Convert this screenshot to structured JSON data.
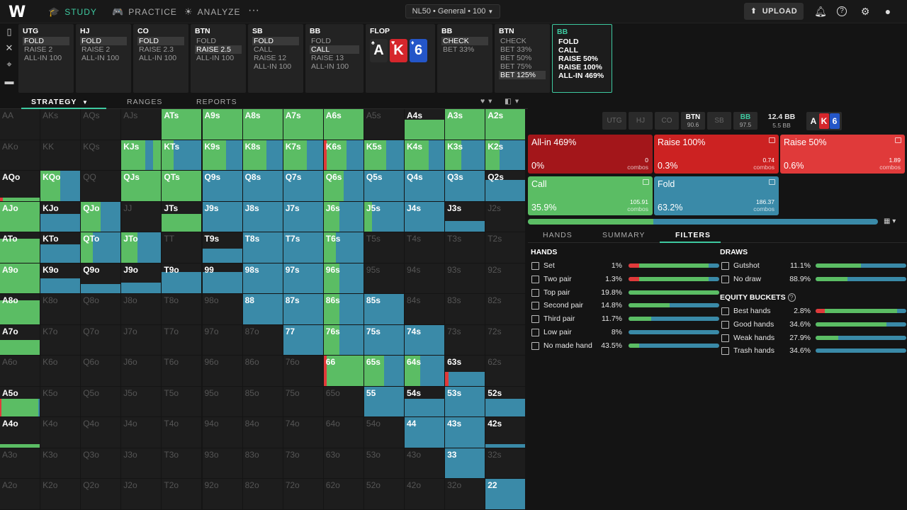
{
  "topbar": {
    "logo": "W",
    "nav": [
      {
        "label": "STUDY",
        "icon": "graduation-cap-icon"
      },
      {
        "label": "PRACTICE",
        "icon": "gamepad-icon"
      },
      {
        "label": "ANALYZE",
        "icon": "lightbulb-icon"
      }
    ],
    "more": "···",
    "game_selector": "NL50 • General • 100",
    "upload_label": "UPLOAD"
  },
  "action_cards": [
    {
      "pos": "UTG",
      "opts": [
        "FOLD",
        "RAISE 2",
        "ALL-IN 100"
      ],
      "sel": 0
    },
    {
      "pos": "HJ",
      "opts": [
        "FOLD",
        "RAISE 2",
        "ALL-IN 100"
      ],
      "sel": 0
    },
    {
      "pos": "CO",
      "opts": [
        "FOLD",
        "RAISE 2.3",
        "ALL-IN 100"
      ],
      "sel": 0
    },
    {
      "pos": "BTN",
      "opts": [
        "FOLD",
        "RAISE 2.5",
        "ALL-IN 100"
      ],
      "sel": 1
    },
    {
      "pos": "SB",
      "opts": [
        "FOLD",
        "CALL",
        "RAISE 12",
        "ALL-IN 100"
      ],
      "sel": 0
    },
    {
      "pos": "BB",
      "opts": [
        "FOLD",
        "CALL",
        "RAISE 13",
        "ALL-IN 100"
      ],
      "sel": 1
    },
    {
      "pos": "FLOP",
      "cards": [
        {
          "r": "A",
          "c": "#2b2b2b",
          "s": "♠"
        },
        {
          "r": "K",
          "c": "#d6262c",
          "s": "♥"
        },
        {
          "r": "6",
          "c": "#2456c8",
          "s": "♦"
        }
      ]
    },
    {
      "pos": "BB",
      "opts": [
        "CHECK",
        "BET 33%"
      ],
      "sel": 0
    },
    {
      "pos": "BTN",
      "opts": [
        "CHECK",
        "BET 33%",
        "BET 50%",
        "BET 75%",
        "BET 125%"
      ],
      "sel": 4
    },
    {
      "pos": "BB",
      "opts": [
        "FOLD",
        "CALL",
        "RAISE 50%",
        "RAISE 100%",
        "ALL-IN 469%"
      ],
      "sel": -1
    }
  ],
  "tabs": {
    "strategy": "STRATEGY",
    "ranges": "RANGES",
    "reports": "REPORTS"
  },
  "colors": {
    "green": "#5bbd64",
    "blue": "#3a8aa8",
    "red": "#e03a3a",
    "darkred": "#a3161a",
    "midred": "#cc2222",
    "teal": "#3ec9a0"
  },
  "grid": [
    [
      "AA",
      ""
    ],
    [
      "AKs",
      ""
    ],
    [
      "AQs",
      ""
    ],
    [
      "AJs",
      ""
    ],
    [
      "ATs",
      "g100"
    ],
    [
      "A9s",
      "g100"
    ],
    [
      "A8s",
      "g100"
    ],
    [
      "A7s",
      "g100"
    ],
    [
      "A6s",
      "g100"
    ],
    [
      "A5s",
      ""
    ],
    [
      "A4s",
      "g65"
    ],
    [
      "A3s",
      "g100"
    ],
    [
      "A2s",
      "g100"
    ],
    [
      "AKo",
      ""
    ],
    [
      "KK",
      ""
    ],
    [
      "KQs",
      ""
    ],
    [
      "KJs",
      "mix:g60:b20:g20"
    ],
    [
      "KTs",
      "fb:g30"
    ],
    [
      "K9s",
      "mix:g60:b40"
    ],
    [
      "K8s",
      "mix:g60:b40"
    ],
    [
      "K7s",
      "mix:g60:b40"
    ],
    [
      "K6s",
      "red:g90"
    ],
    [
      "K5s",
      "mix:g55:b45"
    ],
    [
      "K4s",
      "mix:g60:b40"
    ],
    [
      "K3s",
      "mix:g40:b60"
    ],
    [
      "K2s",
      "mix:g35:b65"
    ],
    [
      "AQo",
      "r10"
    ],
    [
      "KQo",
      "mix:g50:b50"
    ],
    [
      "QQ",
      ""
    ],
    [
      "QJs",
      "g100"
    ],
    [
      "QTs",
      "g100"
    ],
    [
      "Q9s",
      "b100"
    ],
    [
      "Q8s",
      "b100"
    ],
    [
      "Q7s",
      "b100"
    ],
    [
      "Q6s",
      "mix:g50:b50"
    ],
    [
      "Q5s",
      "b100"
    ],
    [
      "Q4s",
      "b100"
    ],
    [
      "Q3s",
      "b100"
    ],
    [
      "Q2s",
      "b70"
    ],
    [
      "AJo",
      "g100"
    ],
    [
      "KJo",
      "b60"
    ],
    [
      "QJo",
      "mix:g50:b50"
    ],
    [
      "JJ",
      ""
    ],
    [
      "JTs",
      "g60"
    ],
    [
      "J9s",
      "b100"
    ],
    [
      "J8s",
      "b100"
    ],
    [
      "J7s",
      "b100"
    ],
    [
      "J6s",
      "mix:g40:b60"
    ],
    [
      "J5s",
      "mix:g20:b80"
    ],
    [
      "J4s",
      "b100"
    ],
    [
      "J3s",
      "b35"
    ],
    [
      "J2s",
      ""
    ],
    [
      "ATo",
      "g80"
    ],
    [
      "KTo",
      "b60"
    ],
    [
      "QTo",
      "mix:g30:b70"
    ],
    [
      "JTo",
      "mix:g40:b60"
    ],
    [
      "TT",
      ""
    ],
    [
      "T9s",
      "b45"
    ],
    [
      "T8s",
      "b100"
    ],
    [
      "T7s",
      "b100"
    ],
    [
      "T6s",
      "mix:g30:b70"
    ],
    [
      "T5s",
      ""
    ],
    [
      "T4s",
      ""
    ],
    [
      "T3s",
      ""
    ],
    [
      "T2s",
      ""
    ],
    [
      "A9o",
      "g100"
    ],
    [
      "K9o",
      "b50"
    ],
    [
      "Q9o",
      "b30"
    ],
    [
      "J9o",
      "b35"
    ],
    [
      "T9o",
      "b70"
    ],
    [
      "99",
      "b70"
    ],
    [
      "98s",
      "b100"
    ],
    [
      "97s",
      "b100"
    ],
    [
      "96s",
      "mix:g40:b60"
    ],
    [
      "95s",
      ""
    ],
    [
      "94s",
      ""
    ],
    [
      "93s",
      ""
    ],
    [
      "92s",
      ""
    ],
    [
      "A8o",
      "g80"
    ],
    [
      "K8o",
      ""
    ],
    [
      "Q8o",
      ""
    ],
    [
      "J8o",
      ""
    ],
    [
      "T8o",
      ""
    ],
    [
      "98o",
      ""
    ],
    [
      "88",
      "b100"
    ],
    [
      "87s",
      "b100"
    ],
    [
      "86s",
      "mix:g40:b60"
    ],
    [
      "85s",
      "b100"
    ],
    [
      "84s",
      ""
    ],
    [
      "83s",
      ""
    ],
    [
      "82s",
      ""
    ],
    [
      "A7o",
      "g50"
    ],
    [
      "K7o",
      ""
    ],
    [
      "Q7o",
      ""
    ],
    [
      "J7o",
      ""
    ],
    [
      "T7o",
      ""
    ],
    [
      "97o",
      ""
    ],
    [
      "87o",
      ""
    ],
    [
      "77",
      "b100"
    ],
    [
      "76s",
      "mix:g40:b60"
    ],
    [
      "75s",
      "b100"
    ],
    [
      "74s",
      "b100"
    ],
    [
      "73s",
      ""
    ],
    [
      "72s",
      ""
    ],
    [
      "A6o",
      ""
    ],
    [
      "K6o",
      ""
    ],
    [
      "Q6o",
      ""
    ],
    [
      "J6o",
      ""
    ],
    [
      "T6o",
      ""
    ],
    [
      "96o",
      ""
    ],
    [
      "86o",
      ""
    ],
    [
      "76o",
      ""
    ],
    [
      "66",
      "red:g100"
    ],
    [
      "65s",
      "mix:g50:b50"
    ],
    [
      "64s",
      "mix:g40:b60"
    ],
    [
      "63s",
      "red:b45"
    ],
    [
      "62s",
      ""
    ],
    [
      "A5o",
      "r:g60"
    ],
    [
      "K5o",
      ""
    ],
    [
      "Q5o",
      ""
    ],
    [
      "J5o",
      ""
    ],
    [
      "T5o",
      ""
    ],
    [
      "95o",
      ""
    ],
    [
      "85o",
      ""
    ],
    [
      "75o",
      ""
    ],
    [
      "65o",
      ""
    ],
    [
      "55",
      "b100"
    ],
    [
      "54s",
      "b60"
    ],
    [
      "53s",
      "b100"
    ],
    [
      "52s",
      "b60"
    ],
    [
      "A4o",
      "g10"
    ],
    [
      "K4o",
      ""
    ],
    [
      "Q4o",
      ""
    ],
    [
      "J4o",
      ""
    ],
    [
      "T4o",
      ""
    ],
    [
      "94o",
      ""
    ],
    [
      "84o",
      ""
    ],
    [
      "74o",
      ""
    ],
    [
      "64o",
      ""
    ],
    [
      "54o",
      ""
    ],
    [
      "44",
      "b100"
    ],
    [
      "43s",
      "b100"
    ],
    [
      "42s",
      "b10"
    ],
    [
      "A3o",
      ""
    ],
    [
      "K3o",
      ""
    ],
    [
      "Q3o",
      ""
    ],
    [
      "J3o",
      ""
    ],
    [
      "T3o",
      ""
    ],
    [
      "93o",
      ""
    ],
    [
      "83o",
      ""
    ],
    [
      "73o",
      ""
    ],
    [
      "63o",
      ""
    ],
    [
      "53o",
      ""
    ],
    [
      "43o",
      ""
    ],
    [
      "33",
      "b100"
    ],
    [
      "32s",
      ""
    ],
    [
      "A2o",
      ""
    ],
    [
      "K2o",
      ""
    ],
    [
      "Q2o",
      ""
    ],
    [
      "J2o",
      ""
    ],
    [
      "T2o",
      ""
    ],
    [
      "92o",
      ""
    ],
    [
      "82o",
      ""
    ],
    [
      "72o",
      ""
    ],
    [
      "62o",
      ""
    ],
    [
      "52o",
      ""
    ],
    [
      "42o",
      ""
    ],
    [
      "32o",
      ""
    ],
    [
      "22",
      "b100"
    ]
  ],
  "positions": [
    {
      "name": "UTG"
    },
    {
      "name": "HJ"
    },
    {
      "name": "CO"
    },
    {
      "name": "BTN",
      "stack": "90.6"
    },
    {
      "name": "SB"
    },
    {
      "name": "BB",
      "stack": "97.5"
    }
  ],
  "pot": {
    "total": "12.4 BB",
    "sub": "5.5 BB"
  },
  "board_mini": [
    {
      "r": "A",
      "c": "#2b2b2b"
    },
    {
      "r": "K",
      "c": "#d6262c"
    },
    {
      "r": "6",
      "c": "#2456c8"
    }
  ],
  "actions": [
    {
      "name": "All-in 469%",
      "pct": "0%",
      "combos": "0",
      "combos_label": "combos",
      "color": "#a3161a"
    },
    {
      "name": "Raise 100%",
      "pct": "0.3%",
      "combos": "0.74",
      "combos_label": "combos",
      "color": "#cc2222"
    },
    {
      "name": "Raise 50%",
      "pct": "0.6%",
      "combos": "1.89",
      "combos_label": "combos",
      "color": "#e03a3a"
    },
    {
      "name": "Call",
      "pct": "35.9%",
      "combos": "105.91",
      "combos_label": "combos",
      "color": "#5bbd64"
    },
    {
      "name": "Fold",
      "pct": "63.2%",
      "combos": "186.37",
      "combos_label": "combos",
      "color": "#3a8aa8"
    }
  ],
  "freq": {
    "call": 0.359,
    "fold": 0.632
  },
  "subtabs": {
    "hands": "HANDS",
    "summary": "SUMMARY",
    "filters": "FILTERS"
  },
  "hands_title": "HANDS",
  "draws_title": "DRAWS",
  "equity_title": "EQUITY BUCKETS",
  "hands": [
    {
      "name": "Set",
      "pct": "1%",
      "r": 0.12,
      "g": 0.88
    },
    {
      "name": "Two pair",
      "pct": "1.3%",
      "r": 0.12,
      "g": 0.88
    },
    {
      "name": "Top pair",
      "pct": "19.8%",
      "r": 0,
      "g": 1
    },
    {
      "name": "Second pair",
      "pct": "14.8%",
      "r": 0,
      "g": 0.45
    },
    {
      "name": "Third pair",
      "pct": "11.7%",
      "r": 0,
      "g": 0.25
    },
    {
      "name": "Low pair",
      "pct": "8%",
      "r": 0,
      "g": 0
    },
    {
      "name": "No made hand",
      "pct": "43.5%",
      "r": 0,
      "g": 0.12
    }
  ],
  "draws": [
    {
      "name": "Gutshot",
      "pct": "11.1%",
      "r": 0,
      "g": 0.5
    },
    {
      "name": "No draw",
      "pct": "88.9%",
      "r": 0,
      "g": 0.35
    }
  ],
  "equity": [
    {
      "name": "Best hands",
      "pct": "2.8%",
      "r": 0.1,
      "g": 0.9
    },
    {
      "name": "Good hands",
      "pct": "34.6%",
      "r": 0,
      "g": 0.78
    },
    {
      "name": "Weak hands",
      "pct": "27.9%",
      "r": 0,
      "g": 0.25
    },
    {
      "name": "Trash hands",
      "pct": "34.6%",
      "r": 0,
      "g": 0
    }
  ]
}
